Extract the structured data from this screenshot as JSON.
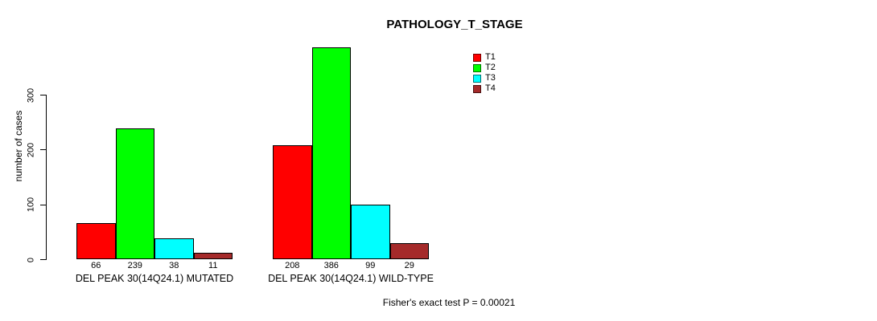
{
  "chart_data": {
    "type": "bar",
    "title": "PATHOLOGY_T_STAGE",
    "ylabel": "number of cases",
    "xlabel": "",
    "ylim": [
      0,
      386
    ],
    "yticks": [
      0,
      100,
      200,
      300
    ],
    "grid": false,
    "legend_position": "top-right",
    "categories": [
      "DEL PEAK 30(14Q24.1) MUTATED",
      "DEL PEAK 30(14Q24.1) WILD-TYPE"
    ],
    "series": [
      {
        "name": "T1",
        "color": "#ff0000",
        "values": [
          66,
          208
        ]
      },
      {
        "name": "T2",
        "color": "#00ff00",
        "values": [
          239,
          386
        ]
      },
      {
        "name": "T3",
        "color": "#00ffff",
        "values": [
          38,
          99
        ]
      },
      {
        "name": "T4",
        "color": "#a52a2a",
        "values": [
          11,
          29
        ]
      }
    ],
    "bar_value_labels": [
      [
        "66",
        "239",
        "38",
        "11"
      ],
      [
        "208",
        "386",
        "99",
        "29"
      ]
    ],
    "annotation": "Fisher's exact test P = 0.00021"
  }
}
